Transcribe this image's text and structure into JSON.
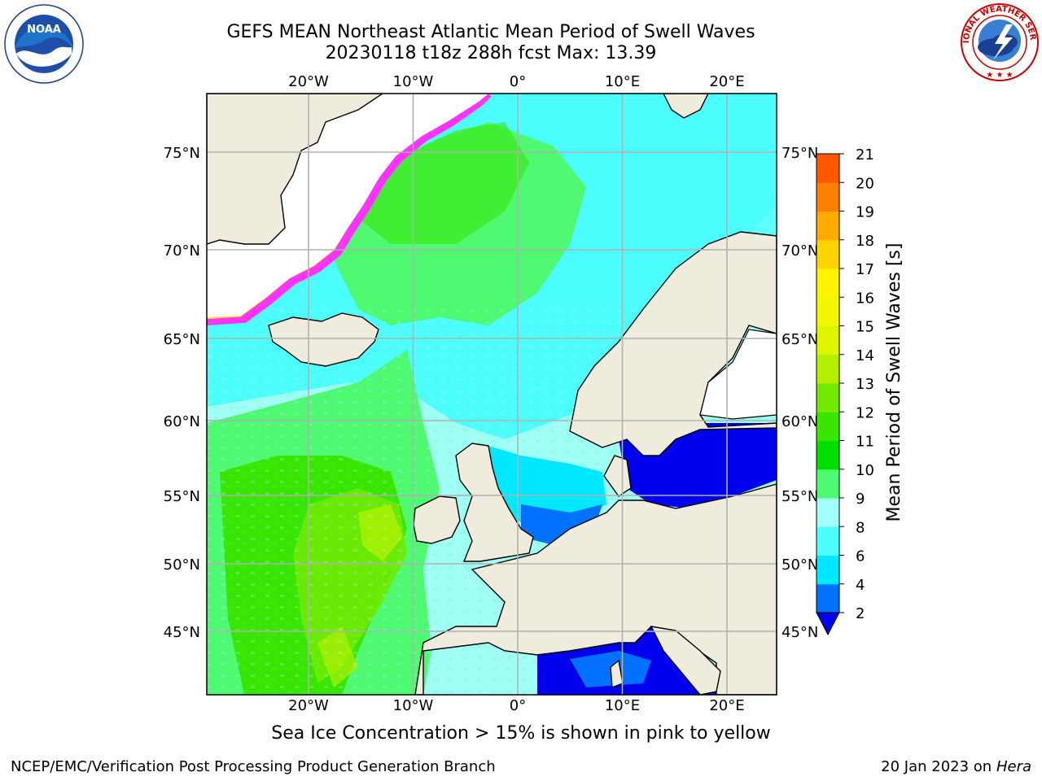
{
  "header": {
    "title_line1": "GEFS MEAN Northeast Atlantic Mean Period of Swell Waves",
    "title_line2": "20230118 t18z 288h fcst   Max: 13.39"
  },
  "logos": {
    "left": {
      "icon": "noaa-logo-icon",
      "text": "NOAA"
    },
    "right": {
      "icon": "national-weather-service-logo-icon",
      "text": "NATIONAL WEATHER SERVICE"
    }
  },
  "map": {
    "lon_labels": [
      "20°W",
      "10°W",
      "0°",
      "10°E",
      "20°E"
    ],
    "lat_labels": [
      "75°N",
      "70°N",
      "65°N",
      "60°N",
      "55°N",
      "50°N",
      "45°N"
    ],
    "lon_values": [
      -20,
      -10,
      0,
      10,
      20
    ],
    "lat_values": [
      75,
      70,
      65,
      60,
      55,
      50,
      45
    ],
    "extent": {
      "lon_min": -30,
      "lon_max": 24.5,
      "lat_min": 41,
      "lat_max": 78
    },
    "colors": {
      "land": "#efecdd",
      "grid": "#b0b0b0",
      "ice_pink": "#ff33ff",
      "ice_yellow": "#ffdd33"
    }
  },
  "colorbar": {
    "label": "Mean Period of Swell Waves [s]",
    "tick_labels": [
      "2",
      "4",
      "6",
      "8",
      "9",
      "10",
      "11",
      "12",
      "13",
      "14",
      "15",
      "16",
      "17",
      "18",
      "19",
      "20",
      "21"
    ],
    "colors": [
      "#0072ff",
      "#00e8ff",
      "#4dfeff",
      "#a2fff9",
      "#4ff971",
      "#00e000",
      "#38e600",
      "#72ea00",
      "#b2f000",
      "#dcf500",
      "#f3f800",
      "#fff400",
      "#ffd400",
      "#ffaa00",
      "#ff8000",
      "#ff5600",
      "#ff2800",
      "#ff0000"
    ],
    "under_color": "#0000ee"
  },
  "caption": "Sea Ice Concentration > 15% is shown in pink to yellow",
  "footer": {
    "left": "NCEP/EMC/Verification Post Processing Product Generation Branch",
    "right_date": "20 Jan 2023 on ",
    "right_host": "Hera"
  },
  "chart_data": {
    "type": "heatmap",
    "title": "GEFS MEAN Northeast Atlantic Mean Period of Swell Waves",
    "subtitle": "20230118 t18z 288h fcst   Max: 13.39",
    "variable": "Mean Period of Swell Waves [s]",
    "max_value": 13.39,
    "colorbar_levels": [
      2,
      4,
      6,
      8,
      9,
      10,
      11,
      12,
      13,
      14,
      15,
      16,
      17,
      18,
      19,
      20,
      21
    ],
    "xlim": [
      -30,
      24.5
    ],
    "ylim": [
      41,
      78
    ],
    "approx_regions": [
      {
        "region": "Central North Atlantic 42-55N, 20-10W",
        "value": 11
      },
      {
        "region": "West of Ireland 52-55N, 15W",
        "value": 12.5
      },
      {
        "region": "Norwegian Sea 66-72N",
        "value": 10
      },
      {
        "region": "North Sea",
        "value": 6
      },
      {
        "region": "Baltic Sea",
        "value": 1
      },
      {
        "region": "Western Mediterranean",
        "value": 3
      },
      {
        "region": "Barents Sea",
        "value": 8
      }
    ]
  }
}
